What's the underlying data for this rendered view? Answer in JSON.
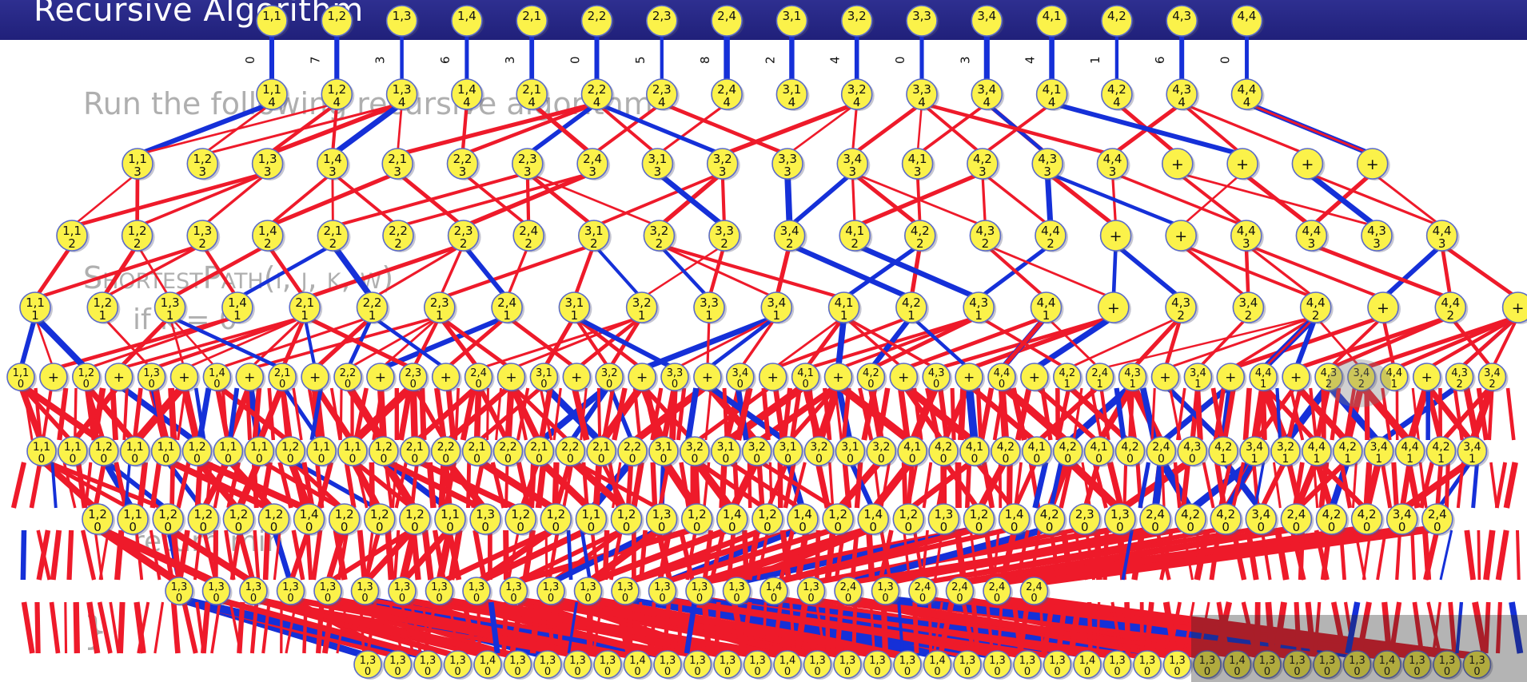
{
  "slide": {
    "title": "Recursive Algorithm",
    "code_run": "Run the following recursive algorithm",
    "code_signature": "ShortestPath(i, j, k, w)",
    "code_if": "if k = 0",
    "code_return": "return min",
    "code_close": "}"
  },
  "colors": {
    "header": "#25257f",
    "node_fill": "#fbf24a",
    "node_stroke": "#5b6bc8",
    "edge_red": "#ee1a2a",
    "edge_blue": "#1530d8"
  },
  "tree": {
    "level0": [
      {
        "t": "1,1",
        "b": ""
      },
      {
        "t": "1,2",
        "b": ""
      },
      {
        "t": "1,3",
        "b": ""
      },
      {
        "t": "1,4",
        "b": ""
      },
      {
        "t": "2,1",
        "b": ""
      },
      {
        "t": "2,2",
        "b": ""
      },
      {
        "t": "2,3",
        "b": ""
      },
      {
        "t": "2,4",
        "b": ""
      },
      {
        "t": "3,1",
        "b": ""
      },
      {
        "t": "3,2",
        "b": ""
      },
      {
        "t": "3,3",
        "b": ""
      },
      {
        "t": "3,4",
        "b": ""
      },
      {
        "t": "4,1",
        "b": ""
      },
      {
        "t": "4,2",
        "b": ""
      },
      {
        "t": "4,3",
        "b": ""
      },
      {
        "t": "4,4",
        "b": ""
      }
    ],
    "level0_weights": [
      "0",
      "7",
      "3",
      "6",
      "3",
      "0",
      "5",
      "8",
      "2",
      "4",
      "0",
      "3",
      "4",
      "1",
      "6",
      "0"
    ],
    "level1": [
      {
        "t": "1,1",
        "b": "4"
      },
      {
        "t": "1,2",
        "b": "4"
      },
      {
        "t": "1,3",
        "b": "4"
      },
      {
        "t": "1,4",
        "b": "4"
      },
      {
        "t": "2,1",
        "b": "4"
      },
      {
        "t": "2,2",
        "b": "4"
      },
      {
        "t": "2,3",
        "b": "4"
      },
      {
        "t": "2,4",
        "b": "4"
      },
      {
        "t": "3,1",
        "b": "4"
      },
      {
        "t": "3,2",
        "b": "4"
      },
      {
        "t": "3,3",
        "b": "4"
      },
      {
        "t": "3,4",
        "b": "4"
      },
      {
        "t": "4,1",
        "b": "4"
      },
      {
        "t": "4,2",
        "b": "4"
      },
      {
        "t": "4,3",
        "b": "4"
      },
      {
        "t": "4,4",
        "b": "4"
      }
    ],
    "level2": [
      {
        "t": "1,1",
        "b": "3"
      },
      {
        "t": "1,2",
        "b": "3"
      },
      {
        "t": "1,3",
        "b": "3"
      },
      {
        "t": "1,4",
        "b": "3"
      },
      {
        "t": "2,1",
        "b": "3"
      },
      {
        "t": "2,2",
        "b": "3"
      },
      {
        "t": "2,3",
        "b": "3"
      },
      {
        "t": "2,4",
        "b": "3"
      },
      {
        "t": "3,1",
        "b": "3"
      },
      {
        "t": "3,2",
        "b": "3"
      },
      {
        "t": "3,3",
        "b": "3"
      },
      {
        "t": "3,4",
        "b": "3"
      },
      {
        "t": "4,1",
        "b": "3"
      },
      {
        "t": "4,2",
        "b": "3"
      },
      {
        "t": "4,3",
        "b": "3"
      },
      {
        "t": "4,4",
        "b": "3"
      },
      {
        "t": "+",
        "b": ""
      },
      {
        "t": "+",
        "b": ""
      },
      {
        "t": "+",
        "b": ""
      },
      {
        "t": "+",
        "b": ""
      }
    ],
    "level3": [
      {
        "t": "1,1",
        "b": "2"
      },
      {
        "t": "1,2",
        "b": "2"
      },
      {
        "t": "1,3",
        "b": "2"
      },
      {
        "t": "1,4",
        "b": "2"
      },
      {
        "t": "2,1",
        "b": "2"
      },
      {
        "t": "2,2",
        "b": "2"
      },
      {
        "t": "2,3",
        "b": "2"
      },
      {
        "t": "2,4",
        "b": "2"
      },
      {
        "t": "3,1",
        "b": "2"
      },
      {
        "t": "3,2",
        "b": "2"
      },
      {
        "t": "3,3",
        "b": "2"
      },
      {
        "t": "3,4",
        "b": "2"
      },
      {
        "t": "4,1",
        "b": "2"
      },
      {
        "t": "4,2",
        "b": "2"
      },
      {
        "t": "4,3",
        "b": "2"
      },
      {
        "t": "4,4",
        "b": "2"
      },
      {
        "t": "+",
        "b": ""
      },
      {
        "t": "+",
        "b": ""
      },
      {
        "t": "4,4",
        "b": "3"
      },
      {
        "t": "4,4",
        "b": "3"
      },
      {
        "t": "4,3",
        "b": "3"
      },
      {
        "t": "4,4",
        "b": "3"
      }
    ],
    "level4": [
      {
        "t": "1,1",
        "b": "1"
      },
      {
        "t": "1,2",
        "b": "1"
      },
      {
        "t": "1,3",
        "b": "1"
      },
      {
        "t": "1,4",
        "b": "1"
      },
      {
        "t": "2,1",
        "b": "1"
      },
      {
        "t": "2,2",
        "b": "1"
      },
      {
        "t": "2,3",
        "b": "1"
      },
      {
        "t": "2,4",
        "b": "1"
      },
      {
        "t": "3,1",
        "b": "1"
      },
      {
        "t": "3,2",
        "b": "1"
      },
      {
        "t": "3,3",
        "b": "1"
      },
      {
        "t": "3,4",
        "b": "1"
      },
      {
        "t": "4,1",
        "b": "1"
      },
      {
        "t": "4,2",
        "b": "1"
      },
      {
        "t": "4,3",
        "b": "1"
      },
      {
        "t": "4,4",
        "b": "1"
      },
      {
        "t": "+",
        "b": ""
      },
      {
        "t": "4,3",
        "b": "2"
      },
      {
        "t": "3,4",
        "b": "2"
      },
      {
        "t": "4,4",
        "b": "2"
      },
      {
        "t": "+",
        "b": ""
      },
      {
        "t": "4,4",
        "b": "2"
      },
      {
        "t": "+",
        "b": ""
      }
    ],
    "level5": [
      {
        "t": "1,1",
        "b": "0"
      },
      {
        "t": "+",
        "b": ""
      },
      {
        "t": "1,2",
        "b": "0"
      },
      {
        "t": "+",
        "b": ""
      },
      {
        "t": "1,3",
        "b": "0"
      },
      {
        "t": "+",
        "b": ""
      },
      {
        "t": "1,4",
        "b": "0"
      },
      {
        "t": "+",
        "b": ""
      },
      {
        "t": "2,1",
        "b": "0"
      },
      {
        "t": "+",
        "b": ""
      },
      {
        "t": "2,2",
        "b": "0"
      },
      {
        "t": "+",
        "b": ""
      },
      {
        "t": "2,3",
        "b": "0"
      },
      {
        "t": "+",
        "b": ""
      },
      {
        "t": "2,4",
        "b": "0"
      },
      {
        "t": "+",
        "b": ""
      },
      {
        "t": "3,1",
        "b": "0"
      },
      {
        "t": "+",
        "b": ""
      },
      {
        "t": "3,2",
        "b": "0"
      },
      {
        "t": "+",
        "b": ""
      },
      {
        "t": "3,3",
        "b": "0"
      },
      {
        "t": "+",
        "b": ""
      },
      {
        "t": "3,4",
        "b": "0"
      },
      {
        "t": "+",
        "b": ""
      },
      {
        "t": "4,1",
        "b": "0"
      },
      {
        "t": "+",
        "b": ""
      },
      {
        "t": "4,2",
        "b": "0"
      },
      {
        "t": "+",
        "b": ""
      },
      {
        "t": "4,3",
        "b": "0"
      },
      {
        "t": "+",
        "b": ""
      },
      {
        "t": "4,4",
        "b": "0"
      },
      {
        "t": "+",
        "b": ""
      },
      {
        "t": "4,2",
        "b": "1"
      },
      {
        "t": "2,4",
        "b": "1"
      },
      {
        "t": "4,3",
        "b": "1"
      },
      {
        "t": "+",
        "b": ""
      },
      {
        "t": "3,4",
        "b": "1"
      },
      {
        "t": "+",
        "b": ""
      },
      {
        "t": "4,4",
        "b": "1"
      },
      {
        "t": "+",
        "b": ""
      },
      {
        "t": "4,3",
        "b": "2"
      },
      {
        "t": "3,4",
        "b": "2"
      },
      {
        "t": "4,4",
        "b": "1"
      },
      {
        "t": "+",
        "b": ""
      },
      {
        "t": "4,3",
        "b": "2"
      },
      {
        "t": "3,4",
        "b": "2"
      }
    ],
    "level6": [
      {
        "t": "1,1",
        "b": "0"
      },
      {
        "t": "1,1",
        "b": "0"
      },
      {
        "t": "1,2",
        "b": "0"
      },
      {
        "t": "1,1",
        "b": "0"
      },
      {
        "t": "1,1",
        "b": "0"
      },
      {
        "t": "1,2",
        "b": "0"
      },
      {
        "t": "1,1",
        "b": "0"
      },
      {
        "t": "1,1",
        "b": "0"
      },
      {
        "t": "1,2",
        "b": "0"
      },
      {
        "t": "1,1",
        "b": "0"
      },
      {
        "t": "1,1",
        "b": "0"
      },
      {
        "t": "1,2",
        "b": "0"
      },
      {
        "t": "2,1",
        "b": "0"
      },
      {
        "t": "2,2",
        "b": "0"
      },
      {
        "t": "2,1",
        "b": "0"
      },
      {
        "t": "2,2",
        "b": "0"
      },
      {
        "t": "2,1",
        "b": "0"
      },
      {
        "t": "2,2",
        "b": "0"
      },
      {
        "t": "2,1",
        "b": "0"
      },
      {
        "t": "2,2",
        "b": "0"
      },
      {
        "t": "3,1",
        "b": "0"
      },
      {
        "t": "3,2",
        "b": "0"
      },
      {
        "t": "3,1",
        "b": "0"
      },
      {
        "t": "3,2",
        "b": "0"
      },
      {
        "t": "3,1",
        "b": "0"
      },
      {
        "t": "3,2",
        "b": "0"
      },
      {
        "t": "3,1",
        "b": "0"
      },
      {
        "t": "3,2",
        "b": "0"
      },
      {
        "t": "4,1",
        "b": "0"
      },
      {
        "t": "4,2",
        "b": "0"
      },
      {
        "t": "4,1",
        "b": "0"
      },
      {
        "t": "4,2",
        "b": "0"
      },
      {
        "t": "4,1",
        "b": "0"
      },
      {
        "t": "4,2",
        "b": "0"
      },
      {
        "t": "4,1",
        "b": "0"
      },
      {
        "t": "4,2",
        "b": "0"
      },
      {
        "t": "2,4",
        "b": "0"
      },
      {
        "t": "4,3",
        "b": "0"
      },
      {
        "t": "4,2",
        "b": "1"
      },
      {
        "t": "3,4",
        "b": "1"
      },
      {
        "t": "3,2",
        "b": "1"
      },
      {
        "t": "4,4",
        "b": "1"
      },
      {
        "t": "4,2",
        "b": "1"
      },
      {
        "t": "3,4",
        "b": "1"
      },
      {
        "t": "4,4",
        "b": "1"
      },
      {
        "t": "4,2",
        "b": "1"
      },
      {
        "t": "3,4",
        "b": "1"
      }
    ],
    "level7": [
      {
        "t": "1,2",
        "b": "0"
      },
      {
        "t": "1,1",
        "b": "0"
      },
      {
        "t": "1,2",
        "b": "0"
      },
      {
        "t": "1,2",
        "b": "0"
      },
      {
        "t": "1,2",
        "b": "0"
      },
      {
        "t": "1,2",
        "b": "0"
      },
      {
        "t": "1,4",
        "b": "0"
      },
      {
        "t": "1,2",
        "b": "0"
      },
      {
        "t": "1,2",
        "b": "0"
      },
      {
        "t": "1,2",
        "b": "0"
      },
      {
        "t": "1,1",
        "b": "0"
      },
      {
        "t": "1,3",
        "b": "0"
      },
      {
        "t": "1,2",
        "b": "0"
      },
      {
        "t": "1,2",
        "b": "0"
      },
      {
        "t": "1,1",
        "b": "0"
      },
      {
        "t": "1,2",
        "b": "0"
      },
      {
        "t": "1,3",
        "b": "0"
      },
      {
        "t": "1,2",
        "b": "0"
      },
      {
        "t": "1,4",
        "b": "0"
      },
      {
        "t": "1,2",
        "b": "0"
      },
      {
        "t": "1,4",
        "b": "0"
      },
      {
        "t": "1,2",
        "b": "0"
      },
      {
        "t": "1,4",
        "b": "0"
      },
      {
        "t": "1,2",
        "b": "0"
      },
      {
        "t": "1,3",
        "b": "0"
      },
      {
        "t": "1,2",
        "b": "0"
      },
      {
        "t": "1,4",
        "b": "0"
      },
      {
        "t": "4,2",
        "b": "0"
      },
      {
        "t": "2,3",
        "b": "0"
      },
      {
        "t": "1,3",
        "b": "0"
      },
      {
        "t": "2,4",
        "b": "0"
      },
      {
        "t": "4,2",
        "b": "0"
      },
      {
        "t": "4,2",
        "b": "0"
      },
      {
        "t": "3,4",
        "b": "0"
      },
      {
        "t": "2,4",
        "b": "0"
      },
      {
        "t": "4,2",
        "b": "0"
      },
      {
        "t": "4,2",
        "b": "0"
      },
      {
        "t": "3,4",
        "b": "0"
      },
      {
        "t": "2,4",
        "b": "0"
      }
    ],
    "level8": [
      {
        "t": "1,3",
        "b": "0"
      },
      {
        "t": "1,3",
        "b": "0"
      },
      {
        "t": "1,3",
        "b": "0"
      },
      {
        "t": "1,3",
        "b": "0"
      },
      {
        "t": "1,3",
        "b": "0"
      },
      {
        "t": "1,3",
        "b": "0"
      },
      {
        "t": "1,3",
        "b": "0"
      },
      {
        "t": "1,3",
        "b": "0"
      },
      {
        "t": "1,3",
        "b": "0"
      },
      {
        "t": "1,3",
        "b": "0"
      },
      {
        "t": "1,3",
        "b": "0"
      },
      {
        "t": "1,3",
        "b": "0"
      },
      {
        "t": "1,3",
        "b": "0"
      },
      {
        "t": "1,3",
        "b": "0"
      },
      {
        "t": "1,3",
        "b": "0"
      },
      {
        "t": "1,3",
        "b": "0"
      },
      {
        "t": "1,4",
        "b": "0"
      },
      {
        "t": "1,3",
        "b": "0"
      },
      {
        "t": "2,4",
        "b": "0"
      },
      {
        "t": "1,3",
        "b": "0"
      },
      {
        "t": "2,4",
        "b": "0"
      },
      {
        "t": "2,4",
        "b": "0"
      },
      {
        "t": "2,4",
        "b": "0"
      },
      {
        "t": "2,4",
        "b": "0"
      }
    ],
    "level9_label": {
      "t": "1,3",
      "b": "0"
    },
    "level9_alt": {
      "t": "1,4",
      "b": "0"
    }
  }
}
